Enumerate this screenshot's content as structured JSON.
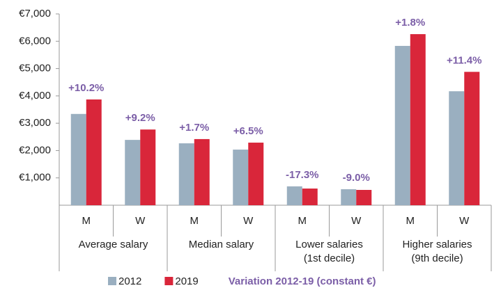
{
  "chart_data": {
    "type": "bar",
    "categories": [
      "M",
      "W",
      "M",
      "W",
      "M",
      "W",
      "M",
      "W"
    ],
    "groups": [
      [
        "Average salary"
      ],
      [
        "Median salary"
      ],
      [
        "Lower salaries",
        "(1st decile)"
      ],
      [
        "Higher salaries",
        "(9th decile)"
      ]
    ],
    "series": [
      {
        "name": "2012",
        "color": "#9aafc0",
        "values": [
          3340,
          2390,
          2265,
          2035,
          690,
          585,
          5830,
          4170
        ]
      },
      {
        "name": "2019",
        "color": "#d9263a",
        "values": [
          3870,
          2770,
          2420,
          2290,
          610,
          560,
          6260,
          4880
        ]
      }
    ],
    "annotations": [
      "+10.2%",
      "+9.2%",
      "+1.7%",
      "+6.5%",
      "-17.3%",
      "-9.0%",
      "+1.8%",
      "+11.4%"
    ],
    "annotation_legend": "Variation 2012-19 (constant €)",
    "ylim": [
      0,
      7000
    ],
    "yticks": [
      {
        "value": 1000,
        "label": "€1,000"
      },
      {
        "value": 2000,
        "label": "€2,000"
      },
      {
        "value": 3000,
        "label": "€3,000"
      },
      {
        "value": 4000,
        "label": "€4,000"
      },
      {
        "value": 5000,
        "label": "€5,000"
      },
      {
        "value": 6000,
        "label": "€6,000"
      },
      {
        "value": 7000,
        "label": "€7,000"
      }
    ]
  }
}
